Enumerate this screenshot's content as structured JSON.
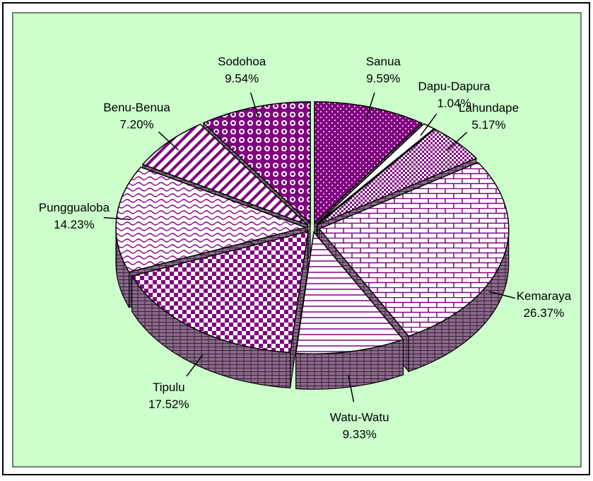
{
  "chart_data": {
    "type": "pie3d",
    "categories": [
      "Sanua",
      "Dapu-Dapura",
      "Lahundape",
      "Kemaraya",
      "Watu-Watu",
      "Tipulu",
      "Punggualoba",
      "Benu-Benua",
      "Sodohoa"
    ],
    "values": [
      9.59,
      1.04,
      5.17,
      26.37,
      9.33,
      17.52,
      14.23,
      7.2,
      9.54
    ],
    "value_labels": [
      "9.59%",
      "1.04%",
      "5.17%",
      "26.37%",
      "9.33%",
      "17.52%",
      "14.23%",
      "7.20%",
      "9.54%"
    ],
    "color": "#800080",
    "background": "#ccffcc"
  }
}
